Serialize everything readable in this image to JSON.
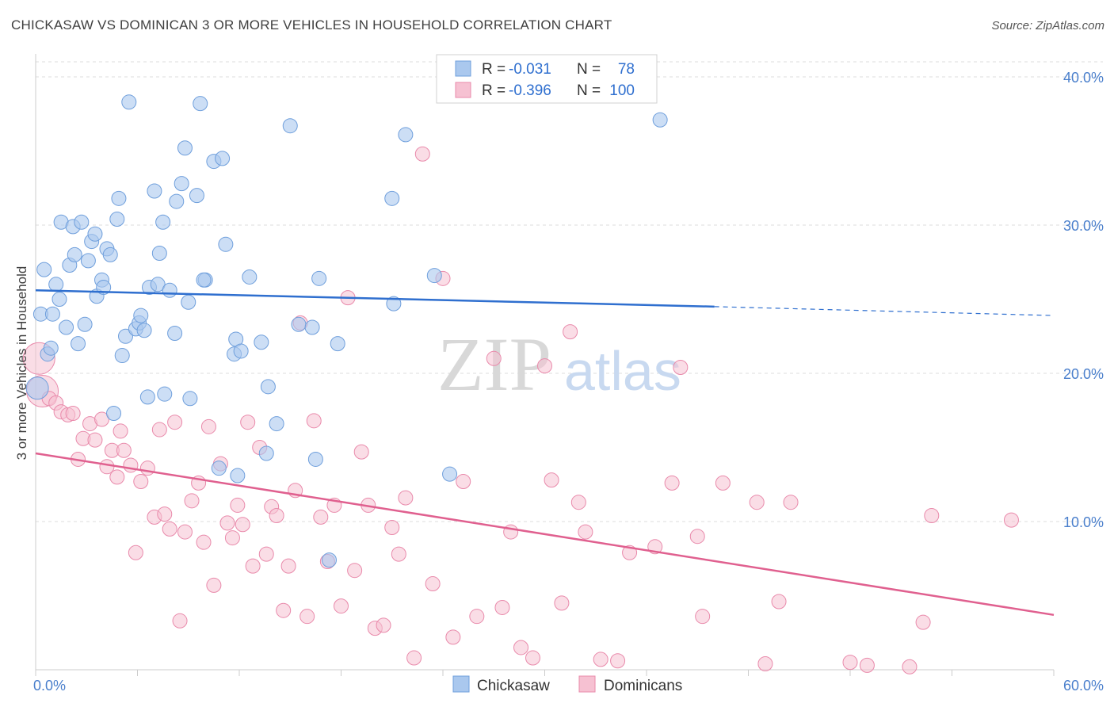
{
  "header": {
    "title": "CHICKASAW VS DOMINICAN 3 OR MORE VEHICLES IN HOUSEHOLD CORRELATION CHART",
    "source": "Source: ZipAtlas.com"
  },
  "watermark": {
    "zip": "ZIP",
    "atlas": "atlas"
  },
  "legend": {
    "rows": [
      {
        "r_label": "R =",
        "r_value": "-0.031",
        "n_label": "N =",
        "n_value": "78"
      },
      {
        "r_label": "R =",
        "r_value": "-0.396",
        "n_label": "N =",
        "n_value": "100"
      }
    ]
  },
  "bottom_legend": [
    "Chickasaw",
    "Dominicans"
  ],
  "colors": {
    "chickasaw_fill": "#aac8ee",
    "chickasaw_stroke": "#6f9fdc",
    "chickasaw_line": "#2f6fcf",
    "dominican_fill": "#f6c1d2",
    "dominican_stroke": "#e98aab",
    "dominican_line": "#e0608f",
    "grid": "#dddddd",
    "axis_text": "#4a7fcc"
  },
  "chart_data": {
    "type": "scatter",
    "title": "CHICKASAW VS DOMINICAN 3 OR MORE VEHICLES IN HOUSEHOLD CORRELATION CHART",
    "xlabel": "",
    "ylabel": "3 or more Vehicles in Household",
    "xlim": [
      0,
      60
    ],
    "ylim": [
      0,
      40
    ],
    "x_tick_labels": [
      "0.0%",
      "60.0%"
    ],
    "y_ticks": [
      10,
      20,
      30,
      40
    ],
    "y_tick_labels": [
      "10.0%",
      "20.0%",
      "30.0%",
      "40.0%"
    ],
    "grid": true,
    "legend_position": "top-center",
    "series": [
      {
        "name": "Chickasaw",
        "r": -0.031,
        "n": 78,
        "trend": {
          "x0": 0,
          "y0": 25.6,
          "x1": 40,
          "y1": 24.5,
          "dash_to_x": 60,
          "dash_y": 23.9
        },
        "points": [
          [
            0.3,
            24.0
          ],
          [
            0.5,
            27.0
          ],
          [
            0.7,
            21.3
          ],
          [
            0.9,
            21.7
          ],
          [
            1.0,
            24.0
          ],
          [
            1.2,
            26.0
          ],
          [
            1.4,
            25.0
          ],
          [
            1.5,
            30.2
          ],
          [
            1.8,
            23.1
          ],
          [
            2.0,
            27.3
          ],
          [
            2.2,
            29.9
          ],
          [
            2.3,
            28.0
          ],
          [
            2.5,
            22.0
          ],
          [
            2.7,
            30.2
          ],
          [
            2.9,
            23.3
          ],
          [
            3.1,
            27.6
          ],
          [
            3.3,
            28.9
          ],
          [
            3.5,
            29.4
          ],
          [
            3.6,
            25.2
          ],
          [
            3.9,
            26.3
          ],
          [
            4.0,
            25.8
          ],
          [
            4.2,
            28.4
          ],
          [
            4.4,
            28.0
          ],
          [
            4.6,
            17.3
          ],
          [
            4.8,
            30.4
          ],
          [
            4.9,
            31.8
          ],
          [
            5.1,
            21.2
          ],
          [
            5.3,
            22.5
          ],
          [
            5.5,
            38.3
          ],
          [
            5.9,
            23.0
          ],
          [
            6.1,
            23.4
          ],
          [
            6.2,
            23.9
          ],
          [
            6.4,
            22.9
          ],
          [
            6.6,
            18.4
          ],
          [
            6.7,
            25.8
          ],
          [
            7.0,
            32.3
          ],
          [
            7.2,
            26.0
          ],
          [
            7.3,
            28.1
          ],
          [
            7.5,
            30.2
          ],
          [
            7.6,
            18.6
          ],
          [
            7.9,
            25.6
          ],
          [
            8.2,
            22.7
          ],
          [
            8.3,
            31.6
          ],
          [
            8.6,
            32.8
          ],
          [
            8.8,
            35.2
          ],
          [
            9.0,
            24.8
          ],
          [
            9.1,
            18.3
          ],
          [
            9.5,
            32.0
          ],
          [
            9.7,
            38.2
          ],
          [
            10.0,
            26.3
          ],
          [
            10.5,
            34.3
          ],
          [
            10.8,
            13.6
          ],
          [
            11.0,
            34.5
          ],
          [
            11.2,
            28.7
          ],
          [
            11.7,
            21.3
          ],
          [
            11.8,
            22.3
          ],
          [
            11.9,
            13.1
          ],
          [
            12.1,
            21.5
          ],
          [
            12.6,
            26.5
          ],
          [
            13.3,
            22.1
          ],
          [
            13.6,
            14.6
          ],
          [
            13.7,
            19.1
          ],
          [
            14.2,
            16.6
          ],
          [
            15.0,
            36.7
          ],
          [
            15.5,
            23.3
          ],
          [
            16.3,
            23.1
          ],
          [
            16.5,
            14.2
          ],
          [
            16.7,
            26.4
          ],
          [
            17.3,
            7.4
          ],
          [
            17.8,
            22.0
          ],
          [
            21.0,
            31.8
          ],
          [
            21.1,
            24.7
          ],
          [
            21.8,
            36.1
          ],
          [
            23.5,
            26.6
          ],
          [
            24.4,
            13.2
          ],
          [
            36.8,
            37.1
          ],
          [
            0.1,
            19.0
          ],
          [
            9.9,
            26.3
          ]
        ]
      },
      {
        "name": "Dominicans",
        "r": -0.396,
        "n": 100,
        "trend": {
          "x0": 0,
          "y0": 14.6,
          "x1": 60,
          "y1": 3.7
        },
        "points": [
          [
            0.2,
            21.0
          ],
          [
            0.4,
            18.8
          ],
          [
            0.8,
            18.3
          ],
          [
            1.2,
            18.0
          ],
          [
            1.5,
            17.4
          ],
          [
            1.9,
            17.2
          ],
          [
            2.2,
            17.3
          ],
          [
            2.5,
            14.2
          ],
          [
            2.8,
            15.6
          ],
          [
            3.2,
            16.6
          ],
          [
            3.5,
            15.5
          ],
          [
            3.9,
            16.9
          ],
          [
            4.2,
            13.7
          ],
          [
            4.5,
            14.8
          ],
          [
            4.8,
            13.0
          ],
          [
            5.0,
            16.1
          ],
          [
            5.2,
            14.8
          ],
          [
            5.6,
            13.8
          ],
          [
            5.9,
            7.9
          ],
          [
            6.2,
            12.7
          ],
          [
            6.6,
            13.6
          ],
          [
            7.0,
            10.3
          ],
          [
            7.3,
            16.2
          ],
          [
            7.6,
            10.5
          ],
          [
            7.9,
            9.5
          ],
          [
            8.2,
            16.7
          ],
          [
            8.5,
            3.3
          ],
          [
            8.8,
            9.3
          ],
          [
            9.2,
            11.4
          ],
          [
            9.6,
            12.6
          ],
          [
            9.9,
            8.6
          ],
          [
            10.2,
            16.4
          ],
          [
            10.5,
            5.7
          ],
          [
            10.9,
            13.9
          ],
          [
            11.3,
            9.9
          ],
          [
            11.6,
            8.9
          ],
          [
            11.9,
            11.1
          ],
          [
            12.2,
            9.8
          ],
          [
            12.5,
            16.7
          ],
          [
            12.8,
            7.0
          ],
          [
            13.2,
            15.0
          ],
          [
            13.6,
            7.8
          ],
          [
            13.9,
            11.0
          ],
          [
            14.2,
            10.4
          ],
          [
            14.6,
            4.0
          ],
          [
            14.9,
            7.0
          ],
          [
            15.3,
            12.1
          ],
          [
            15.6,
            23.4
          ],
          [
            16.0,
            3.6
          ],
          [
            16.4,
            16.8
          ],
          [
            16.8,
            10.3
          ],
          [
            17.2,
            7.3
          ],
          [
            17.6,
            11.1
          ],
          [
            18.0,
            4.3
          ],
          [
            18.4,
            25.1
          ],
          [
            18.8,
            6.7
          ],
          [
            19.2,
            14.7
          ],
          [
            19.6,
            11.1
          ],
          [
            20.0,
            2.8
          ],
          [
            20.5,
            3.0
          ],
          [
            21.0,
            9.6
          ],
          [
            21.4,
            7.8
          ],
          [
            21.8,
            11.6
          ],
          [
            22.3,
            0.8
          ],
          [
            22.8,
            34.8
          ],
          [
            23.4,
            5.8
          ],
          [
            24.0,
            26.4
          ],
          [
            24.6,
            2.2
          ],
          [
            25.2,
            12.7
          ],
          [
            26.0,
            3.6
          ],
          [
            27.0,
            21.0
          ],
          [
            27.5,
            4.2
          ],
          [
            28.0,
            9.3
          ],
          [
            28.6,
            1.5
          ],
          [
            29.3,
            0.8
          ],
          [
            30.0,
            20.5
          ],
          [
            30.4,
            12.8
          ],
          [
            31.0,
            4.5
          ],
          [
            31.5,
            22.8
          ],
          [
            32.0,
            11.3
          ],
          [
            32.4,
            9.3
          ],
          [
            33.3,
            0.7
          ],
          [
            34.3,
            0.6
          ],
          [
            35.0,
            7.9
          ],
          [
            36.5,
            8.3
          ],
          [
            37.5,
            12.6
          ],
          [
            38.0,
            20.4
          ],
          [
            39.0,
            9.0
          ],
          [
            39.3,
            3.6
          ],
          [
            40.5,
            12.6
          ],
          [
            42.5,
            11.3
          ],
          [
            43.0,
            0.4
          ],
          [
            43.8,
            4.6
          ],
          [
            44.5,
            11.3
          ],
          [
            48.0,
            0.5
          ],
          [
            49.0,
            0.3
          ],
          [
            51.5,
            0.2
          ],
          [
            52.3,
            3.2
          ],
          [
            52.8,
            10.4
          ],
          [
            57.5,
            10.1
          ]
        ]
      }
    ]
  }
}
